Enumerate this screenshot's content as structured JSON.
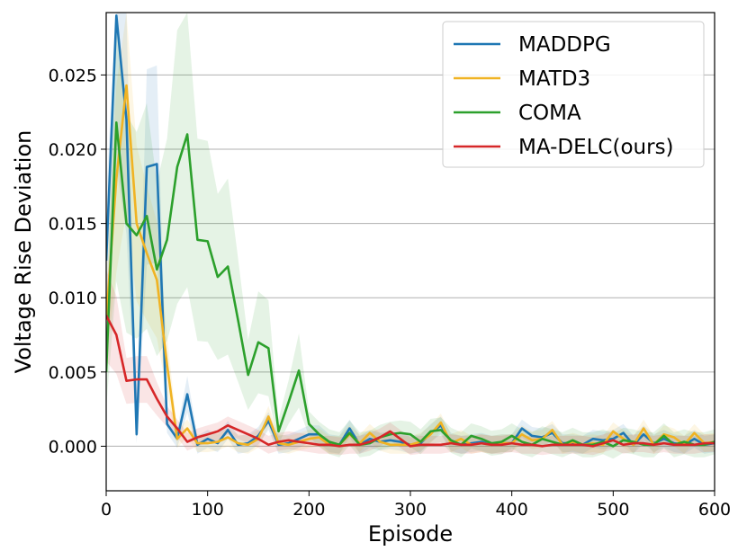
{
  "chart_data": {
    "type": "line",
    "xlabel": "Episode",
    "ylabel": "Voltage Rise Deviation",
    "xlim": [
      0,
      600
    ],
    "ylim": [
      -0.003,
      0.0292
    ],
    "xticks": [
      "0",
      "100",
      "200",
      "300",
      "400",
      "500",
      "600"
    ],
    "yticks": [
      "0.000",
      "0.005",
      "0.010",
      "0.015",
      "0.020",
      "0.025"
    ],
    "grid": "horizontal",
    "legend_position": "upper-right",
    "series": [
      {
        "name": "MADDPG",
        "color": "#1f77b4",
        "x": [
          0,
          10,
          20,
          30,
          40,
          50,
          60,
          70,
          80,
          90,
          100,
          110,
          120,
          130,
          140,
          150,
          160,
          170,
          180,
          190,
          200,
          210,
          220,
          230,
          240,
          250,
          260,
          270,
          280,
          290,
          300,
          310,
          320,
          330,
          340,
          350,
          360,
          370,
          380,
          390,
          400,
          410,
          420,
          430,
          440,
          450,
          460,
          470,
          480,
          490,
          500,
          510,
          520,
          530,
          540,
          550,
          560,
          570,
          580,
          590,
          600
        ],
        "y": [
          0.0125,
          0.029,
          0.022,
          0.0008,
          0.0188,
          0.019,
          0.0015,
          0.0005,
          0.0035,
          0.0001,
          0.0005,
          0.0002,
          0.0011,
          0.0001,
          0.0002,
          0.0007,
          0.0017,
          0.0001,
          0.0002,
          0.0005,
          0.0008,
          0.0008,
          0.0002,
          0.0001,
          0.0012,
          0.0001,
          0.0005,
          0.0003,
          0.0004,
          0.0003,
          0.0001,
          0.0002,
          0.0009,
          0.0014,
          0.0003,
          0.0001,
          0.0002,
          0.0003,
          0.0001,
          0.0002,
          0.0002,
          0.0012,
          0.0007,
          0.0006,
          0.0009,
          0.0002,
          0.0002,
          0.0001,
          0.0005,
          0.0004,
          0.0005,
          0.0009,
          0.0001,
          0.0008,
          0.0002,
          0.0005,
          0.0002,
          0.0001,
          0.0005,
          0.0001,
          0.0002
        ]
      },
      {
        "name": "MATD3",
        "color": "#f0b323",
        "x": [
          0,
          10,
          20,
          30,
          40,
          50,
          60,
          70,
          80,
          90,
          100,
          110,
          120,
          130,
          140,
          150,
          160,
          170,
          180,
          190,
          200,
          210,
          220,
          230,
          240,
          250,
          260,
          270,
          280,
          290,
          300,
          310,
          320,
          330,
          340,
          350,
          360,
          370,
          380,
          390,
          400,
          410,
          420,
          430,
          440,
          450,
          460,
          470,
          480,
          490,
          500,
          510,
          520,
          530,
          540,
          550,
          560,
          570,
          580,
          590,
          600
        ],
        "y": [
          0.0085,
          0.018,
          0.0243,
          0.015,
          0.013,
          0.0112,
          0.0055,
          0.0005,
          0.0012,
          0.0002,
          0.0002,
          0.0003,
          0.0006,
          0.0002,
          0.0001,
          0.0005,
          0.002,
          0.0002,
          0.0001,
          0.0003,
          0.0005,
          0.0006,
          0.0001,
          0.0001,
          0.0008,
          0.0002,
          0.0009,
          0.0003,
          0.0001,
          0.0001,
          0.0001,
          0.0003,
          0.0008,
          0.0016,
          0.0002,
          0.0005,
          0.0001,
          0.0002,
          0.0001,
          0.0002,
          0.0002,
          0.0008,
          0.0004,
          0.0005,
          0.0011,
          0.0001,
          0.0003,
          0.0001,
          0.0002,
          0.0001,
          0.001,
          0.0005,
          0.0001,
          0.0012,
          0.0001,
          0.0008,
          0.0006,
          0.0001,
          0.0009,
          0.0002,
          0.0003
        ]
      },
      {
        "name": "COMA",
        "color": "#2ca02c",
        "x": [
          0,
          10,
          20,
          30,
          40,
          50,
          60,
          70,
          80,
          90,
          100,
          110,
          120,
          130,
          140,
          150,
          160,
          170,
          180,
          190,
          200,
          210,
          220,
          230,
          240,
          250,
          260,
          270,
          280,
          290,
          300,
          310,
          320,
          330,
          340,
          350,
          360,
          370,
          380,
          390,
          400,
          410,
          420,
          430,
          440,
          450,
          460,
          470,
          480,
          490,
          500,
          510,
          520,
          530,
          540,
          550,
          560,
          570,
          580,
          590,
          600
        ],
        "y": [
          0.005,
          0.0218,
          0.015,
          0.0142,
          0.0155,
          0.0119,
          0.0139,
          0.0188,
          0.021,
          0.0139,
          0.0138,
          0.0114,
          0.0121,
          0.0085,
          0.0048,
          0.007,
          0.0066,
          0.001,
          0.003,
          0.0051,
          0.0015,
          0.0008,
          0.0003,
          0.0001,
          0.0009,
          0.0001,
          0.0002,
          0.0006,
          0.0008,
          0.0009,
          0.0008,
          0.0003,
          0.001,
          0.0011,
          0.0004,
          0.0001,
          0.0007,
          0.0005,
          0.0002,
          0.0003,
          0.0007,
          0.0003,
          0.0001,
          0.0005,
          0.0003,
          0.0001,
          0.0004,
          0.0001,
          0.0001,
          0.0003,
          0.0,
          0.0004,
          0.0003,
          0.0001,
          0.0001,
          0.0007,
          0.0001,
          0.0003,
          0.0001,
          0.0001,
          0.0003
        ]
      },
      {
        "name": "MA-DELC(ours)",
        "color": "#d62728",
        "x": [
          0,
          10,
          20,
          30,
          40,
          50,
          60,
          70,
          80,
          90,
          100,
          110,
          120,
          130,
          140,
          150,
          160,
          170,
          180,
          190,
          200,
          210,
          220,
          230,
          240,
          250,
          260,
          270,
          280,
          290,
          300,
          310,
          320,
          330,
          340,
          350,
          360,
          370,
          380,
          390,
          400,
          410,
          420,
          430,
          440,
          450,
          460,
          470,
          480,
          490,
          500,
          510,
          520,
          530,
          540,
          550,
          560,
          570,
          580,
          590,
          600
        ],
        "y": [
          0.0088,
          0.0075,
          0.0044,
          0.0045,
          0.0045,
          0.0032,
          0.002,
          0.0012,
          0.0003,
          0.0006,
          0.0008,
          0.001,
          0.0014,
          0.0011,
          0.0008,
          0.0005,
          0.0001,
          0.0003,
          0.0004,
          0.0003,
          0.0002,
          0.0001,
          0.0001,
          0.0,
          0.0001,
          0.0001,
          0.0003,
          0.0006,
          0.001,
          0.0005,
          0.0,
          0.0001,
          0.0001,
          0.0001,
          0.0002,
          0.0001,
          0.0001,
          0.0002,
          0.0001,
          0.0001,
          0.0002,
          0.0001,
          0.0001,
          0.0,
          0.0001,
          0.0001,
          0.0001,
          0.0001,
          0.0,
          0.0002,
          0.0004,
          0.0001,
          0.0002,
          0.0002,
          0.0001,
          0.0002,
          0.0001,
          0.0001,
          0.0001,
          0.0002,
          0.0002
        ]
      }
    ]
  }
}
